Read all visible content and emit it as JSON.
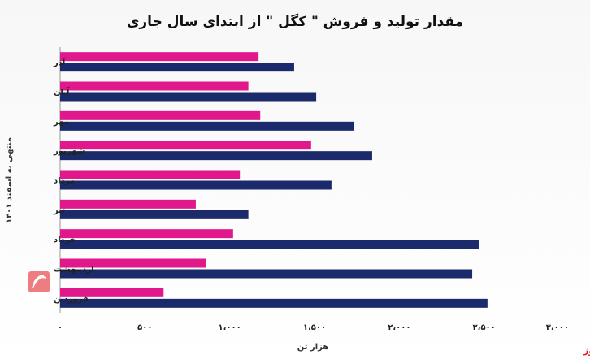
{
  "chart_data": {
    "type": "bar",
    "orientation": "horizontal",
    "title": "مقدار تولید و فروش \" کگل \" از ابتدای سال جاری",
    "ylabel": "منتهی به اسفند ۱۴۰۱",
    "xlabel": "هزار تن",
    "categories": [
      "آذر",
      "آبان",
      "مهر",
      "شهریور",
      "مرداد",
      "تیر",
      "خرداد",
      "اردیبهشت",
      "فروردین"
    ],
    "series": [
      {
        "color": "#e0188c",
        "values": [
          1170,
          1110,
          1180,
          1480,
          1060,
          800,
          1020,
          860,
          610
        ]
      },
      {
        "color": "#1b2a6b",
        "values": [
          1380,
          1510,
          1730,
          1840,
          1600,
          1110,
          2470,
          2430,
          2520
        ]
      }
    ],
    "xlim": [
      0,
      3000
    ],
    "xticks": [
      0,
      500,
      1000,
      1500,
      2000,
      2500,
      3000
    ],
    "xtick_labels": [
      "۰",
      "۵۰۰",
      "۱،۰۰۰",
      "۱،۵۰۰",
      "۲،۰۰۰",
      "۲،۵۰۰",
      "۳،۰۰۰"
    ],
    "grid": false,
    "legend": "none"
  },
  "source_label": "بورس نیوز",
  "colors": {
    "accent": "#e0161f"
  }
}
